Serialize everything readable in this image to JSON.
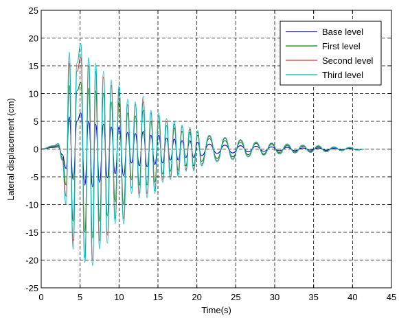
{
  "chart_data": {
    "type": "line",
    "xlabel": "Time(s)",
    "ylabel": "Lateral displacement (cm)",
    "xlim": [
      0,
      45
    ],
    "ylim": [
      -25,
      25
    ],
    "xticks": [
      0,
      5,
      10,
      15,
      20,
      25,
      30,
      35,
      40,
      45
    ],
    "yticks": [
      -25,
      -20,
      -15,
      -10,
      -5,
      0,
      5,
      10,
      15,
      20,
      25
    ],
    "x_tick_labels": [
      "0",
      "5",
      "10",
      "15",
      "20",
      "25",
      "30",
      "35",
      "40",
      "45"
    ],
    "y_tick_labels": [
      "-25",
      "-20",
      "-15",
      "-10",
      "-5",
      "0",
      "5",
      "10",
      "15",
      "20",
      "25"
    ],
    "grid": true,
    "legend_position": "top-right",
    "series": [
      {
        "name": "Base level",
        "color": "#0000cc",
        "x": [
          0,
          1.6,
          2.2,
          2.7,
          3.2,
          3.6,
          4.1,
          4.6,
          5.1,
          5.6,
          6.1,
          6.6,
          7.0,
          7.5,
          8.0,
          8.5,
          9.0,
          9.5,
          10.0,
          10.6,
          11.1,
          11.6,
          12.1,
          12.6,
          13.1,
          13.6,
          14.1,
          14.6,
          15.1,
          15.6,
          16.1,
          16.6,
          17.1,
          17.6,
          18.1,
          18.6,
          19.1,
          19.6,
          20.1,
          20.6,
          21.6,
          22.6,
          23.6,
          24.6,
          25.6,
          26.6,
          27.6,
          28.6,
          29.6,
          30.6,
          31.6,
          32.6,
          33.6,
          34.6,
          35.6,
          36.6,
          37.6,
          38.6,
          39.6,
          40.6,
          41.5
        ],
        "y": [
          0,
          0.3,
          0.4,
          -1.0,
          -3.5,
          5.8,
          -5.5,
          5.0,
          6.5,
          -6.5,
          5.0,
          -6.8,
          4.5,
          -6.0,
          4.5,
          -5.2,
          4.0,
          -4.5,
          4.0,
          -4.8,
          3.0,
          -2.5,
          2.8,
          -3.0,
          3.2,
          -3.2,
          2.5,
          -2.8,
          2.5,
          -2.5,
          2.0,
          -2.0,
          1.8,
          -2.0,
          1.5,
          -1.5,
          1.5,
          -1.5,
          1.2,
          -1.2,
          0.9,
          -0.8,
          0.7,
          -0.7,
          0.6,
          -0.5,
          0.5,
          -0.4,
          0.4,
          -0.3,
          0.3,
          -0.3,
          0.2,
          -0.2,
          0.2,
          -0.2,
          0.1,
          -0.1,
          0.1,
          -0.1,
          0.0
        ]
      },
      {
        "name": "First level",
        "color": "#008000",
        "x": [
          0,
          1.6,
          2.2,
          2.7,
          3.2,
          3.6,
          4.1,
          4.6,
          5.1,
          5.6,
          6.1,
          6.6,
          7.0,
          7.5,
          8.0,
          8.5,
          9.0,
          9.5,
          10.0,
          10.6,
          11.1,
          11.6,
          12.1,
          12.6,
          13.1,
          13.6,
          14.1,
          14.6,
          15.1,
          15.6,
          16.1,
          16.6,
          17.1,
          17.6,
          18.1,
          18.6,
          19.1,
          19.6,
          20.1,
          20.6,
          21.6,
          22.6,
          23.6,
          24.6,
          25.6,
          26.6,
          27.6,
          28.6,
          29.6,
          30.6,
          31.6,
          32.6,
          33.6,
          34.6,
          35.6,
          36.6,
          37.6,
          38.6,
          39.6,
          40.6,
          41.5
        ],
        "y": [
          0,
          0.4,
          0.6,
          -1.5,
          -6.5,
          11.5,
          -13.0,
          10.5,
          12.0,
          -15.0,
          11.0,
          -16.0,
          10.5,
          -13.0,
          10.0,
          -12.0,
          8.5,
          -9.5,
          8.5,
          -10.0,
          6.5,
          -5.5,
          6.0,
          -6.5,
          7.0,
          -6.5,
          5.0,
          -6.0,
          5.0,
          -4.5,
          4.2,
          -4.0,
          3.8,
          -3.8,
          3.2,
          -3.0,
          3.0,
          -3.0,
          2.5,
          -2.2,
          1.9,
          -1.7,
          1.5,
          -1.4,
          1.2,
          -1.0,
          1.0,
          -0.8,
          0.8,
          -0.6,
          0.6,
          -0.5,
          0.5,
          -0.4,
          0.4,
          -0.3,
          0.3,
          -0.2,
          0.2,
          -0.1,
          0.0
        ]
      },
      {
        "name": "Second level",
        "color": "#e03030",
        "x": [
          0,
          1.6,
          2.2,
          2.7,
          3.2,
          3.6,
          4.1,
          4.6,
          5.1,
          5.6,
          6.1,
          6.6,
          7.0,
          7.5,
          8.0,
          8.5,
          9.0,
          9.5,
          10.0,
          10.6,
          11.1,
          11.6,
          12.1,
          12.6,
          13.1,
          13.6,
          14.1,
          14.6,
          15.1,
          15.6,
          16.1,
          16.6,
          17.1,
          17.6,
          18.1,
          18.6,
          19.1,
          19.6,
          20.1,
          20.6,
          21.6,
          22.6,
          23.6,
          24.6,
          25.6,
          26.6,
          27.6,
          28.6,
          29.6,
          30.6,
          31.6,
          32.6,
          33.6,
          34.6,
          35.6,
          36.6,
          37.6,
          38.6,
          39.6,
          40.6,
          41.5
        ],
        "y": [
          0,
          0.5,
          0.8,
          -1.8,
          -8.5,
          15.5,
          -16.5,
          14.0,
          16.5,
          -19.5,
          15.0,
          -20.0,
          14.0,
          -16.5,
          13.0,
          -15.5,
          11.5,
          -12.5,
          10.5,
          -12.5,
          8.0,
          -7.0,
          8.0,
          -8.0,
          8.5,
          -8.0,
          6.5,
          -7.5,
          6.0,
          -5.5,
          5.0,
          -5.0,
          4.5,
          -4.5,
          4.0,
          -3.7,
          3.6,
          -3.6,
          3.0,
          -2.7,
          2.3,
          -2.1,
          1.9,
          -1.7,
          1.5,
          -1.3,
          1.2,
          -1.0,
          1.0,
          -0.8,
          0.8,
          -0.6,
          0.6,
          -0.5,
          0.5,
          -0.4,
          0.4,
          -0.3,
          0.3,
          -0.2,
          0.0
        ]
      },
      {
        "name": "Third level",
        "color": "#00bbbb",
        "x": [
          0,
          1.6,
          2.2,
          2.7,
          3.2,
          3.6,
          4.1,
          4.6,
          5.1,
          5.6,
          6.1,
          6.6,
          7.0,
          7.5,
          8.0,
          8.5,
          9.0,
          9.5,
          10.0,
          10.6,
          11.1,
          11.6,
          12.1,
          12.6,
          13.1,
          13.6,
          14.1,
          14.6,
          15.1,
          15.6,
          16.1,
          16.6,
          17.1,
          17.6,
          18.1,
          18.6,
          19.1,
          19.6,
          20.1,
          20.6,
          21.6,
          22.6,
          23.6,
          24.6,
          25.6,
          26.6,
          27.6,
          28.6,
          29.6,
          30.6,
          31.6,
          32.6,
          33.6,
          34.6,
          35.6,
          36.6,
          37.6,
          38.6,
          39.6,
          40.6,
          41.5
        ],
        "y": [
          0,
          0.6,
          1.0,
          -2.0,
          -10.0,
          17.5,
          -18.0,
          15.5,
          19.0,
          -20.5,
          16.5,
          -21.0,
          15.5,
          -18.0,
          14.0,
          -17.0,
          12.5,
          -13.5,
          11.5,
          -13.5,
          9.0,
          -8.0,
          8.5,
          -8.8,
          9.5,
          -8.8,
          7.0,
          -8.0,
          6.5,
          -6.0,
          5.5,
          -5.5,
          5.0,
          -5.0,
          4.3,
          -4.0,
          3.9,
          -3.9,
          3.3,
          -3.0,
          2.5,
          -2.3,
          2.1,
          -1.9,
          1.7,
          -1.4,
          1.3,
          -1.1,
          1.1,
          -0.9,
          0.9,
          -0.7,
          0.7,
          -0.6,
          0.6,
          -0.5,
          0.4,
          -0.3,
          0.3,
          -0.2,
          0.0
        ]
      }
    ]
  }
}
